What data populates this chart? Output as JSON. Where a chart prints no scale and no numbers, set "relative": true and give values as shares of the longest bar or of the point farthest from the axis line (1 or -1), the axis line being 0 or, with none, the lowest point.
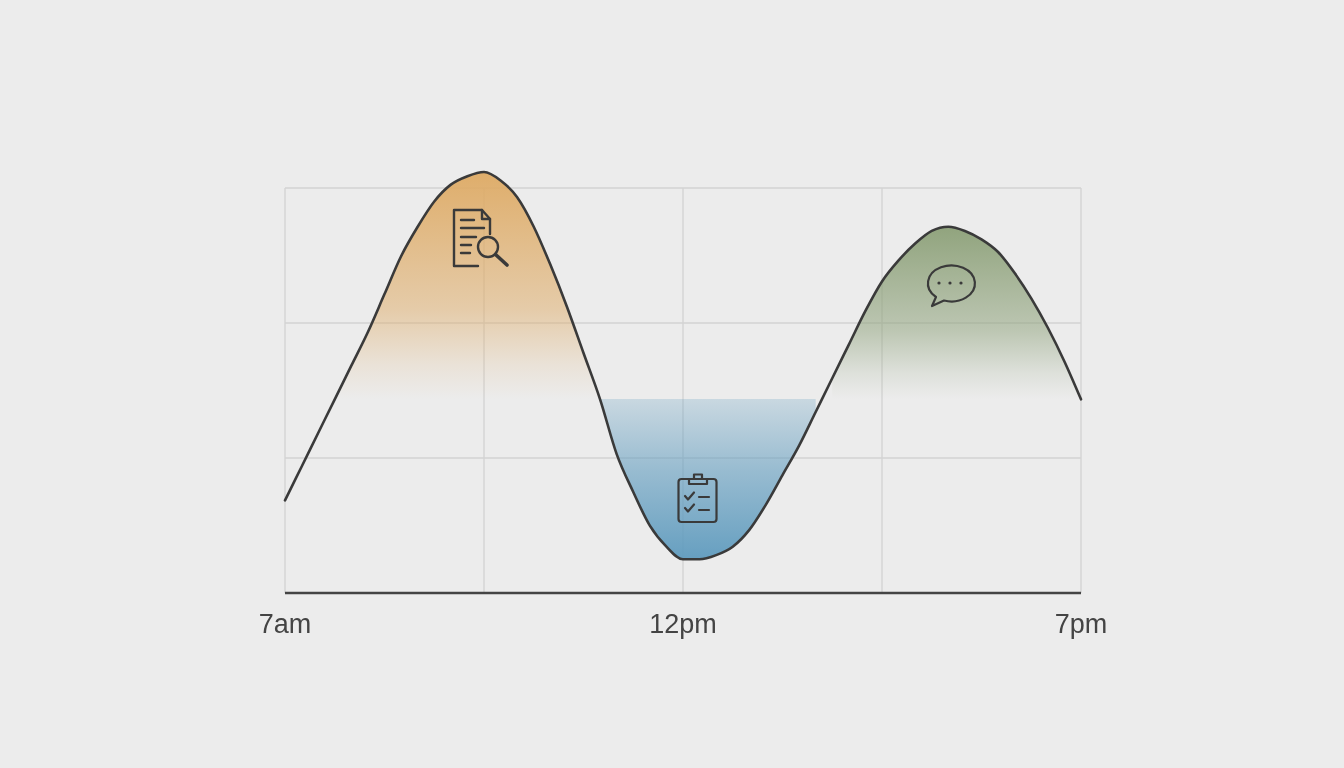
{
  "chart_data": {
    "type": "line",
    "relative": true,
    "grid": true,
    "categories": [
      "7am",
      null,
      null,
      null,
      null,
      null,
      null,
      null,
      null,
      null,
      null,
      null,
      null,
      null,
      null,
      null,
      null,
      null,
      null,
      null,
      null,
      null,
      null,
      null,
      "12pm",
      null,
      null,
      null,
      null,
      null,
      null,
      null,
      null,
      null,
      null,
      null,
      null,
      null,
      null,
      null,
      null,
      null,
      null,
      null,
      null,
      null,
      null,
      null,
      "7pm"
    ],
    "series": [
      {
        "type": "area",
        "color": "#deaa64",
        "values": [
          null,
          null,
          null,
          0.46,
          0.54,
          0.62,
          0.71,
          0.8,
          0.87,
          0.93,
          0.97,
          0.99,
          1,
          0.98,
          0.94,
          0.87,
          0.78,
          0.68,
          0.57,
          0.46,
          null,
          null,
          null,
          null,
          null,
          null,
          null,
          null,
          null,
          null,
          null,
          null,
          null,
          null,
          null,
          null,
          null,
          null,
          null,
          null,
          null,
          null,
          null,
          null,
          null,
          null,
          null,
          null,
          null
        ]
      },
      {
        "type": "area",
        "color": "#8ca078",
        "values": [
          null,
          null,
          null,
          null,
          null,
          null,
          null,
          null,
          null,
          null,
          null,
          null,
          null,
          null,
          null,
          null,
          null,
          null,
          null,
          null,
          null,
          null,
          null,
          null,
          null,
          null,
          null,
          null,
          null,
          null,
          null,
          null,
          null,
          0.51,
          0.59,
          0.67,
          0.74,
          0.79,
          0.83,
          0.86,
          0.87,
          0.86,
          0.84,
          0.81,
          0.76,
          0.7,
          0.63,
          0.55,
          0.46
        ]
      },
      {
        "color": "#3a3a3a",
        "values": [
          0.22,
          0.3,
          0.38,
          0.46,
          0.54,
          0.62,
          0.71,
          0.8,
          0.87,
          0.93,
          0.97,
          0.99,
          1,
          0.98,
          0.94,
          0.87,
          0.78,
          0.68,
          0.57,
          0.46,
          0.33,
          0.24,
          0.16,
          0.11,
          0.08,
          0.08,
          0.09,
          0.11,
          0.15,
          0.21,
          0.28,
          0.35,
          0.43,
          0.51,
          0.59,
          0.67,
          0.74,
          0.79,
          0.83,
          0.86,
          0.87,
          0.86,
          0.84,
          0.81,
          0.76,
          0.7,
          0.63,
          0.55,
          0.46
        ]
      }
    ]
  }
}
